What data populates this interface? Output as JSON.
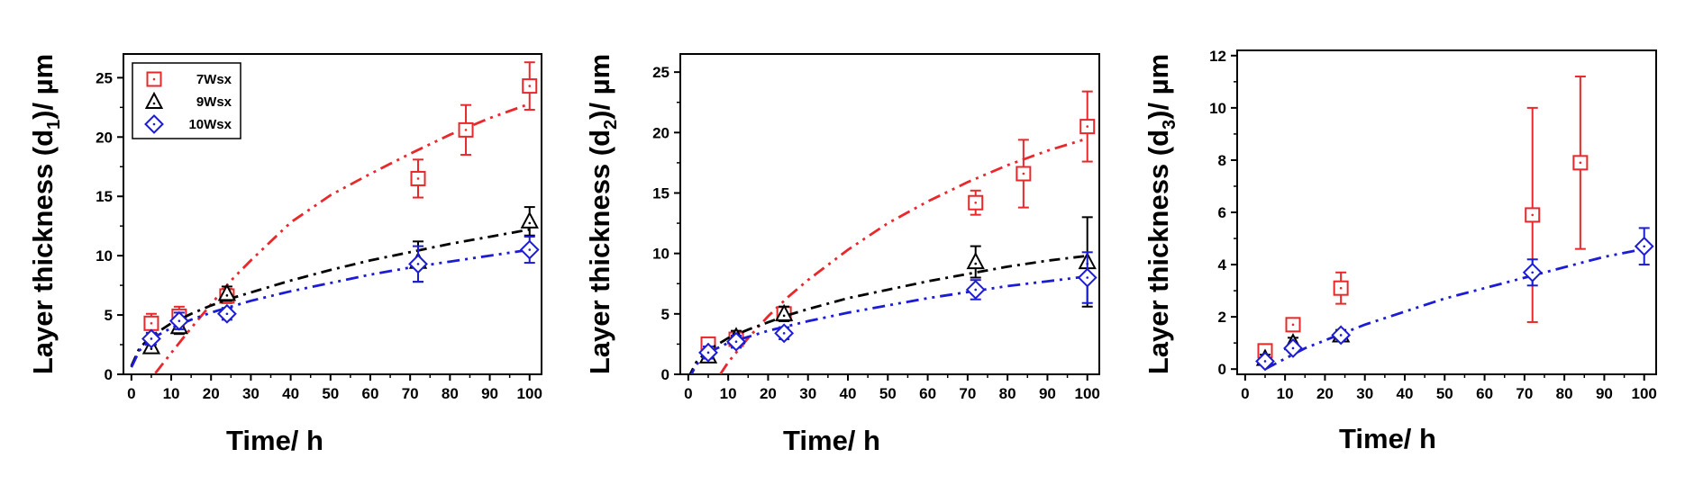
{
  "chart_data": [
    {
      "type": "scatter",
      "xlabel": "Time/ h",
      "ylabel": "Layer thickness (d1)/ µm",
      "ylabel_parts": {
        "prefix": "Layer thickness (d",
        "sub": "1",
        "suffix": ")/ µm"
      },
      "xlim": [
        -2,
        103
      ],
      "ylim": [
        0,
        27
      ],
      "xticks": [
        0,
        10,
        20,
        30,
        40,
        50,
        60,
        70,
        80,
        90,
        100
      ],
      "yticks": [
        0,
        5,
        10,
        15,
        20,
        25
      ],
      "legend": {
        "placement": "top-left",
        "entries": [
          "7Wsx",
          "9Wsx",
          "10Wsx"
        ]
      },
      "series": [
        {
          "name": "7Wsx",
          "marker": "square",
          "color": "#e8282a",
          "points": [
            {
              "x": 5,
              "y": 4.3,
              "err": 0.8
            },
            {
              "x": 12,
              "y": 4.9,
              "err": 0.8
            },
            {
              "x": 24,
              "y": 6.6,
              "err": 0.6
            },
            {
              "x": 72,
              "y": 16.5,
              "err": 1.6
            },
            {
              "x": 84,
              "y": 20.6,
              "err": 2.1
            },
            {
              "x": 100,
              "y": 24.3,
              "err": 2.0
            }
          ],
          "fit": {
            "x": [
              6,
              10,
              15,
              20,
              25,
              30,
              40,
              50,
              60,
              70,
              80,
              90,
              100
            ],
            "y": [
              0.1,
              1.8,
              3.9,
              5.9,
              7.9,
              9.6,
              12.8,
              15.1,
              16.9,
              18.6,
              20.2,
              21.6,
              22.8
            ]
          }
        },
        {
          "name": "9Wsx",
          "marker": "triangle",
          "color": "#000000",
          "points": [
            {
              "x": 5,
              "y": 2.3,
              "err": 0.5
            },
            {
              "x": 12,
              "y": 4.0,
              "err": 0.6
            },
            {
              "x": 24,
              "y": 6.8,
              "err": 0.6
            },
            {
              "x": 72,
              "y": 9.5,
              "err": 1.7
            },
            {
              "x": 100,
              "y": 12.9,
              "err": 1.2
            }
          ],
          "fit": {
            "x": [
              0,
              2,
              5,
              10,
              15,
              20,
              25,
              30,
              40,
              50,
              60,
              70,
              80,
              90,
              100
            ],
            "y": [
              0.7,
              2.2,
              3.2,
              4.3,
              5.1,
              5.8,
              6.4,
              6.9,
              7.9,
              8.8,
              9.6,
              10.3,
              11.0,
              11.6,
              12.2
            ]
          }
        },
        {
          "name": "10Wsx",
          "marker": "diamond",
          "color": "#1c1cd6",
          "points": [
            {
              "x": 5,
              "y": 3.0,
              "err": 0.5
            },
            {
              "x": 12,
              "y": 4.5,
              "err": 0.7
            },
            {
              "x": 24,
              "y": 5.1,
              "err": 0.5
            },
            {
              "x": 72,
              "y": 9.3,
              "err": 1.5
            },
            {
              "x": 100,
              "y": 10.5,
              "err": 1.1
            }
          ],
          "fit": {
            "x": [
              0,
              2,
              5,
              10,
              15,
              20,
              25,
              30,
              40,
              50,
              60,
              70,
              80,
              90,
              100
            ],
            "y": [
              0.6,
              2.0,
              3.0,
              3.9,
              4.6,
              5.2,
              5.7,
              6.2,
              7.0,
              7.7,
              8.4,
              9.0,
              9.5,
              10.0,
              10.5
            ]
          }
        }
      ]
    },
    {
      "type": "scatter",
      "xlabel": "Time/ h",
      "ylabel": "Layer thickness (d2)/ µm",
      "ylabel_parts": {
        "prefix": "Layer thickness (d",
        "sub": "2",
        "suffix": ")/ µm"
      },
      "xlim": [
        -2,
        103
      ],
      "ylim": [
        0,
        26.5
      ],
      "xticks": [
        0,
        10,
        20,
        30,
        40,
        50,
        60,
        70,
        80,
        90,
        100
      ],
      "yticks": [
        0,
        5,
        10,
        15,
        20,
        25
      ],
      "series": [
        {
          "name": "7Wsx",
          "marker": "square",
          "color": "#e8282a",
          "points": [
            {
              "x": 5,
              "y": 2.5,
              "err": 0.5
            },
            {
              "x": 12,
              "y": 2.9,
              "err": 0.5
            },
            {
              "x": 24,
              "y": 5.0,
              "err": 0.6
            },
            {
              "x": 72,
              "y": 14.2,
              "err": 1.0
            },
            {
              "x": 84,
              "y": 16.6,
              "err": 2.8
            },
            {
              "x": 100,
              "y": 20.5,
              "err": 2.9
            }
          ],
          "fit": {
            "x": [
              8,
              10,
              15,
              20,
              25,
              30,
              40,
              50,
              60,
              70,
              80,
              90,
              100
            ],
            "y": [
              0.0,
              1.0,
              3.0,
              4.8,
              6.4,
              7.8,
              10.3,
              12.5,
              14.3,
              15.9,
              17.3,
              18.5,
              19.5
            ]
          }
        },
        {
          "name": "9Wsx",
          "marker": "triangle",
          "color": "#000000",
          "points": [
            {
              "x": 5,
              "y": 1.5,
              "err": 0.5
            },
            {
              "x": 12,
              "y": 3.1,
              "err": 0.5
            },
            {
              "x": 24,
              "y": 5.0,
              "err": 0.6
            },
            {
              "x": 72,
              "y": 9.3,
              "err": 1.3
            },
            {
              "x": 100,
              "y": 9.3,
              "err": 3.7
            }
          ],
          "fit": {
            "x": [
              0,
              2,
              5,
              10,
              15,
              20,
              25,
              30,
              40,
              50,
              60,
              70,
              80,
              90,
              100
            ],
            "y": [
              -0.3,
              1.0,
              2.0,
              3.0,
              3.7,
              4.3,
              4.9,
              5.4,
              6.3,
              7.0,
              7.7,
              8.3,
              8.9,
              9.4,
              9.8
            ]
          }
        },
        {
          "name": "10Wsx",
          "marker": "diamond",
          "color": "#1c1cd6",
          "points": [
            {
              "x": 5,
              "y": 1.8,
              "err": 0.5
            },
            {
              "x": 12,
              "y": 2.7,
              "err": 0.5
            },
            {
              "x": 24,
              "y": 3.4,
              "err": 0.5
            },
            {
              "x": 72,
              "y": 7.0,
              "err": 0.8
            },
            {
              "x": 100,
              "y": 8.0,
              "err": 2.1
            }
          ],
          "fit": {
            "x": [
              0,
              2,
              5,
              10,
              15,
              20,
              25,
              30,
              40,
              50,
              60,
              70,
              80,
              90,
              100
            ],
            "y": [
              -0.5,
              0.8,
              1.8,
              2.6,
              3.1,
              3.6,
              4.0,
              4.4,
              5.1,
              5.7,
              6.3,
              6.8,
              7.3,
              7.7,
              8.1
            ]
          }
        }
      ]
    },
    {
      "type": "scatter",
      "xlabel": "Time/ h",
      "ylabel": "Layer thickness (d3)/ µm",
      "ylabel_parts": {
        "prefix": "Layer thickness (d",
        "sub": "3",
        "suffix": ")/ µm"
      },
      "xlim": [
        -2,
        103
      ],
      "ylim": [
        -0.2,
        12.2
      ],
      "xticks": [
        0,
        10,
        20,
        30,
        40,
        50,
        60,
        70,
        80,
        90,
        100
      ],
      "yticks": [
        0,
        2,
        4,
        6,
        8,
        10,
        12
      ],
      "series": [
        {
          "name": "7Wsx",
          "marker": "square",
          "color": "#e8282a",
          "points": [
            {
              "x": 5,
              "y": 0.7,
              "err": 0.2
            },
            {
              "x": 12,
              "y": 1.7,
              "err": 0.2
            },
            {
              "x": 24,
              "y": 3.1,
              "err": 0.6
            },
            {
              "x": 72,
              "y": 5.9,
              "err": 4.1
            },
            {
              "x": 84,
              "y": 7.9,
              "err": 3.3
            }
          ],
          "fit": null
        },
        {
          "name": "9Wsx",
          "marker": "triangle",
          "color": "#000000",
          "points": [
            {
              "x": 5,
              "y": 0.4,
              "err": 0.15
            },
            {
              "x": 12,
              "y": 1.0,
              "err": 0.2
            },
            {
              "x": 24,
              "y": 1.3,
              "err": 0.2
            }
          ],
          "fit": null
        },
        {
          "name": "10Wsx",
          "marker": "diamond",
          "color": "#1c1cd6",
          "points": [
            {
              "x": 5,
              "y": 0.3,
              "err": 0.1
            },
            {
              "x": 12,
              "y": 0.8,
              "err": 0.15
            },
            {
              "x": 24,
              "y": 1.3,
              "err": 0.15
            },
            {
              "x": 72,
              "y": 3.7,
              "err": 0.5
            },
            {
              "x": 100,
              "y": 4.7,
              "err": 0.7
            }
          ],
          "fit": {
            "x": [
              5,
              10,
              15,
              20,
              25,
              30,
              40,
              50,
              60,
              70,
              80,
              90,
              100
            ],
            "y": [
              0.0,
              0.4,
              0.8,
              1.1,
              1.4,
              1.7,
              2.2,
              2.7,
              3.1,
              3.5,
              3.9,
              4.3,
              4.6
            ]
          }
        }
      ]
    }
  ]
}
